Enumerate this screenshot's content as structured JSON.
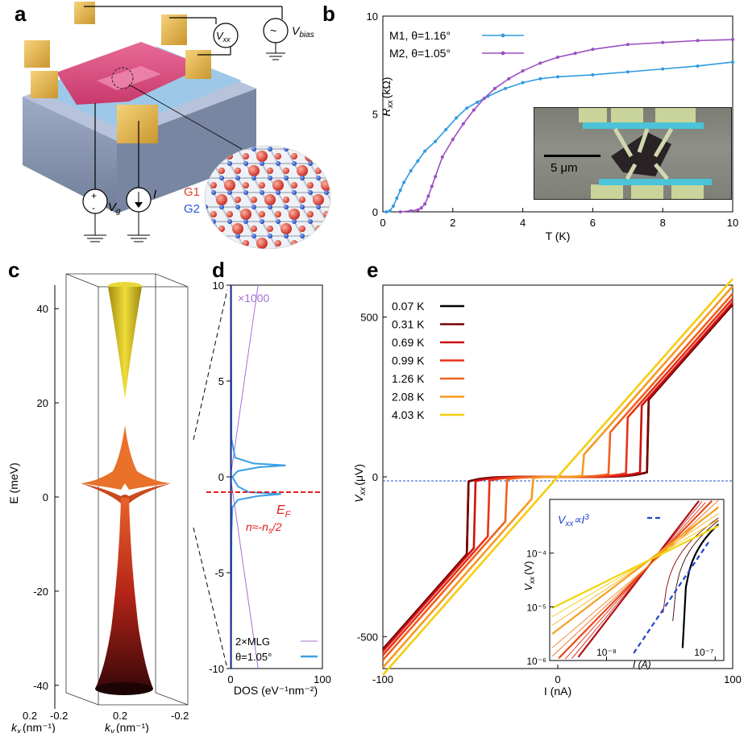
{
  "panels": {
    "a": "a",
    "b": "b",
    "c": "c",
    "d": "d",
    "e": "e"
  },
  "panel_a": {
    "labels": {
      "vxx": "V",
      "vxx_sub": "xx",
      "vbias": "V",
      "vbias_sub": "bias",
      "vg": "V",
      "vg_sub": "g",
      "i": "I",
      "g1": "G1",
      "g2": "G2",
      "plus": "+",
      "minus": "-"
    },
    "colors": {
      "gold": "#e8b84a",
      "pink": "#d94a7c",
      "blue": "#7fb9e0",
      "substrate": "#8c9ab4",
      "g1": "#e0402a",
      "g2": "#2a55d0"
    }
  },
  "panel_b": {
    "photo_scale_label": "5 μm",
    "colors": {
      "m1": "#2f9be0",
      "m2": "#9b4fc1"
    }
  },
  "panel_c": {
    "colors": {
      "upper_band": "#d8c21a",
      "lower_band": "#c0341c"
    }
  },
  "panel_d": {
    "annotation_x1000": "×1000",
    "ef_label": "E",
    "ef_sub": "F",
    "ef_density": "n≈-n",
    "ef_density_sub": "s",
    "ef_density_tail": "/2",
    "colors": {
      "mlg": "#a66fd6",
      "tbg": "#3aa0e6",
      "ef": "#e02020"
    }
  },
  "panel_e": {
    "inset_annotation": "V",
    "inset_annotation_sub": "xx",
    "inset_annotation_tail": "∝I",
    "inset_annotation_exp": "3",
    "inset_ylabel": "V",
    "inset_ylabel_sub": "xx",
    "inset_ylabel_unit": "(V)",
    "inset_xlabel": "I (A)"
  },
  "chart_data": [
    {
      "panel": "b",
      "type": "line",
      "title": "",
      "xlabel": "T (K)",
      "ylabel": "R",
      "ylabel_sub": "xx",
      "ylabel_unit": "(kΩ)",
      "xlim": [
        0,
        10
      ],
      "ylim": [
        0,
        10
      ],
      "xticks": [
        "0",
        "2",
        "4",
        "6",
        "8",
        "10"
      ],
      "yticks": [
        "0",
        "5",
        "10"
      ],
      "legend_position": "top-left",
      "series": [
        {
          "name": "M1, θ=1.16°",
          "color": "#2f9be0",
          "x": [
            0.1,
            0.2,
            0.3,
            0.4,
            0.5,
            0.6,
            0.8,
            1.0,
            1.2,
            1.5,
            1.8,
            2.1,
            2.4,
            2.7,
            3.0,
            3.5,
            4.0,
            4.5,
            5.0,
            6.0,
            7.0,
            8.0,
            9.0,
            10.0
          ],
          "y": [
            0.0,
            0.05,
            0.3,
            0.7,
            1.1,
            1.5,
            2.1,
            2.6,
            3.1,
            3.6,
            4.2,
            4.8,
            5.3,
            5.6,
            5.9,
            6.3,
            6.6,
            6.8,
            6.9,
            7.0,
            7.15,
            7.3,
            7.45,
            7.65
          ]
        },
        {
          "name": "M2, θ=1.05°",
          "color": "#9b4fc1",
          "x": [
            0.5,
            0.8,
            1.0,
            1.1,
            1.2,
            1.3,
            1.4,
            1.5,
            1.7,
            2.0,
            2.3,
            2.6,
            2.9,
            3.2,
            3.6,
            4.0,
            4.5,
            5.0,
            5.5,
            6.0,
            7.0,
            8.0,
            9.0,
            10.0
          ],
          "y": [
            0.0,
            0.05,
            0.1,
            0.2,
            0.4,
            0.8,
            1.3,
            1.8,
            2.8,
            3.7,
            4.5,
            5.2,
            5.8,
            6.3,
            6.8,
            7.2,
            7.6,
            7.9,
            8.1,
            8.3,
            8.55,
            8.65,
            8.75,
            8.8
          ]
        }
      ]
    },
    {
      "panel": "c",
      "type": "area",
      "xlabel": "k",
      "xlabel_sub": "x",
      "xlabel_unit": "(nm⁻¹)",
      "ylabel": "E (meV)",
      "kylabel": "k",
      "kylabel_sub": "y",
      "kylabel_unit": "(nm⁻¹)",
      "ylim": [
        -45,
        45
      ],
      "yticks": [
        "40",
        "20",
        "0",
        "-20",
        "-40"
      ],
      "kx_ticks": [
        "0.2",
        "-0.2"
      ],
      "ky_ticks": [
        "0.2",
        "-0.2"
      ]
    },
    {
      "panel": "d",
      "type": "line",
      "xlabel": "DOS (eV⁻¹nm⁻²)",
      "xlim": [
        0,
        100
      ],
      "ylim": [
        -10,
        10
      ],
      "xticks": [
        "0",
        "100"
      ],
      "yticks": [
        "10",
        "5",
        "0",
        "-5",
        "-10"
      ],
      "legend_position": "bottom-right",
      "series": [
        {
          "name": "2×MLG",
          "color": "#a66fd6",
          "note": "scaled",
          "x_at_ymin": 30,
          "x_at_y0": 0,
          "x_at_ymax": 30
        },
        {
          "name": "θ=1.05°",
          "color": "#3aa0e6",
          "y": [
            -10,
            -3,
            -1.6,
            -1.2,
            -1.0,
            -0.9,
            -0.8,
            -0.5,
            0,
            0.3,
            0.5,
            0.6,
            0.7,
            1.0,
            2,
            10
          ],
          "x": [
            0.5,
            1,
            2,
            8,
            30,
            55,
            20,
            8,
            2,
            8,
            30,
            60,
            25,
            5,
            1,
            0.5
          ]
        }
      ],
      "ef_y": -0.8
    },
    {
      "panel": "e",
      "type": "line",
      "xlabel": "I (nA)",
      "ylabel": "V",
      "ylabel_sub": "xx",
      "ylabel_unit": "(μV)",
      "xlim": [
        -100,
        100
      ],
      "ylim": [
        -600,
        600
      ],
      "xticks": [
        "-100",
        "0",
        "100"
      ],
      "yticks": [
        "500",
        "0",
        "-500"
      ],
      "legend_position": "top-left",
      "series": [
        {
          "name": "0.07 K",
          "color": "#000000",
          "ic": 52
        },
        {
          "name": "0.31 K",
          "color": "#7a0000",
          "ic": 52
        },
        {
          "name": "0.69 K",
          "color": "#cc1010",
          "ic": 48
        },
        {
          "name": "0.99 K",
          "color": "#e8321a",
          "ic": 40
        },
        {
          "name": "1.26 K",
          "color": "#f0621e",
          "ic": 30
        },
        {
          "name": "2.08 K",
          "color": "#f59a22",
          "ic": 15
        },
        {
          "name": "4.03 K",
          "color": "#f5cd10",
          "ic": 0
        }
      ],
      "inset": {
        "type": "line",
        "xscale": "log",
        "yscale": "log",
        "xlim": [
          3e-09,
          1.2e-07
        ],
        "ylim": [
          1e-06,
          0.001
        ],
        "xticks": [
          "10⁻⁸",
          "10⁻⁷"
        ],
        "yticks": [
          "10⁻⁴",
          "10⁻⁵",
          "10⁻⁶"
        ],
        "fit_label": "V_xx ∝ I^3"
      }
    }
  ]
}
